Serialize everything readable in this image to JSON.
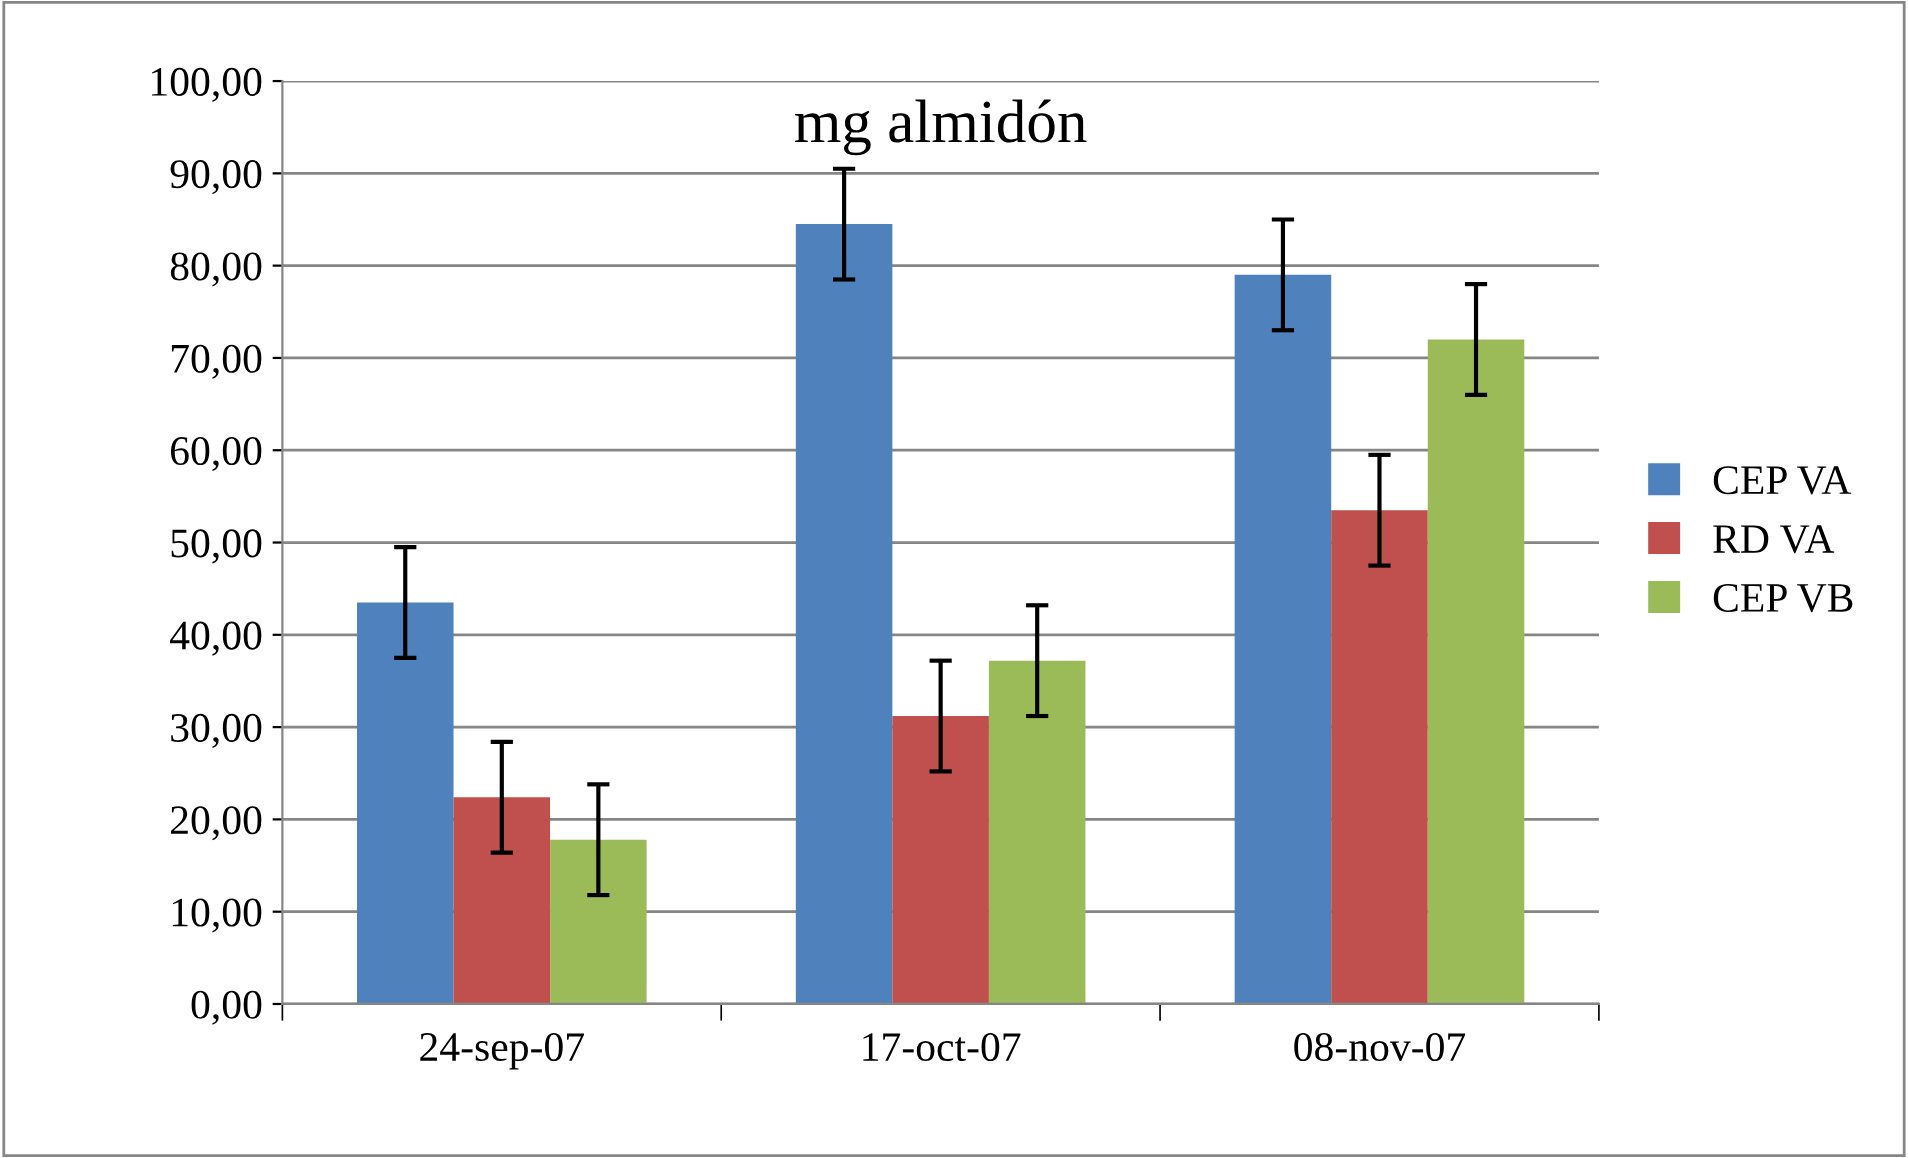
{
  "chart_data": {
    "type": "bar",
    "title": "mg almidón",
    "categories": [
      "24-sep-07",
      "17-oct-07",
      "08-nov-07"
    ],
    "series": [
      {
        "name": "CEP VA",
        "color": "#4f81bd",
        "values": [
          43.5,
          84.5,
          79.0
        ],
        "errors": [
          6,
          6,
          6
        ]
      },
      {
        "name": "RD VA",
        "color": "#c0504d",
        "values": [
          22.4,
          31.2,
          53.5
        ],
        "errors": [
          6,
          6,
          6
        ]
      },
      {
        "name": "CEP VB",
        "color": "#9bbb59",
        "values": [
          17.8,
          37.2,
          72.0
        ],
        "errors": [
          6,
          6,
          6
        ]
      }
    ],
    "ylim": [
      0,
      100
    ],
    "yticks": [
      {
        "value": 0,
        "label": "0,00"
      },
      {
        "value": 10,
        "label": "10,00"
      },
      {
        "value": 20,
        "label": "20,00"
      },
      {
        "value": 30,
        "label": "30,00"
      },
      {
        "value": 40,
        "label": "40,00"
      },
      {
        "value": 50,
        "label": "50,00"
      },
      {
        "value": 60,
        "label": "60,00"
      },
      {
        "value": 70,
        "label": "70,00"
      },
      {
        "value": 80,
        "label": "80,00"
      },
      {
        "value": 90,
        "label": "90,00"
      },
      {
        "value": 100,
        "label": "100,00"
      }
    ],
    "grid": "y",
    "legend": "right"
  }
}
